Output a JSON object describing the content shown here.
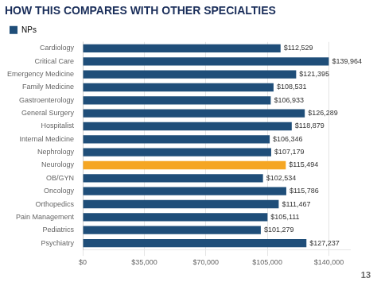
{
  "chart_data": {
    "type": "bar",
    "orientation": "horizontal",
    "title": "HOW THIS COMPARES WITH OTHER SPECIALTIES",
    "categories": [
      "Cardiology",
      "Critical Care",
      "Emergency Medicine",
      "Family Medicine",
      "Gastroenterology",
      "General Surgery",
      "Hospitalist",
      "Internal Medicine",
      "Nephrology",
      "Neurology",
      "OB/GYN",
      "Oncology",
      "Orthopedics",
      "Pain Management",
      "Pediatrics",
      "Psychiatry"
    ],
    "series": [
      {
        "name": "NPs",
        "color": "#1f4e79",
        "colors": [
          "#1f4e79",
          "#1f4e79",
          "#1f4e79",
          "#1f4e79",
          "#1f4e79",
          "#1f4e79",
          "#1f4e79",
          "#1f4e79",
          "#1f4e79",
          "#f5a623",
          "#1f4e79",
          "#1f4e79",
          "#1f4e79",
          "#1f4e79",
          "#1f4e79",
          "#1f4e79"
        ],
        "values": [
          112529,
          139964,
          121395,
          108531,
          106933,
          126289,
          118879,
          106346,
          107179,
          115494,
          102534,
          115786,
          111467,
          105111,
          101279,
          127237
        ],
        "value_labels": [
          "$112,529",
          "$139,964",
          "$121,395",
          "$108,531",
          "$106,933",
          "$126,289",
          "$118,879",
          "$106,346",
          "$107,179",
          "$115,494",
          "$102,534",
          "$115,786",
          "$111,467",
          "$105,111",
          "$101,279",
          "$127,237"
        ]
      }
    ],
    "xlim": [
      0,
      152000
    ],
    "xticks": [
      {
        "value": 0,
        "label": "$0"
      },
      {
        "value": 35000,
        "label": "$35,000"
      },
      {
        "value": 70000,
        "label": "$70,000"
      },
      {
        "value": 105000,
        "label": "$105,000"
      },
      {
        "value": 140000,
        "label": "$140,000"
      }
    ],
    "grid": true,
    "legend": "top left",
    "data_labels": true,
    "annotations": [
      "13"
    ]
  }
}
